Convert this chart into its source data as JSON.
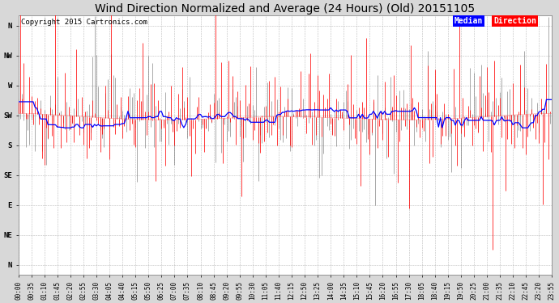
{
  "title": "Wind Direction Normalized and Average (24 Hours) (Old) 20151105",
  "copyright": "Copyright 2015 Cartronics.com",
  "y_labels": [
    "N",
    "NW",
    "W",
    "SW",
    "S",
    "SE",
    "E",
    "NE",
    "N"
  ],
  "y_values": [
    360,
    315,
    270,
    225,
    180,
    135,
    90,
    45,
    0
  ],
  "ylim_min": 0,
  "ylim_max": 360,
  "background_color": "#d8d8d8",
  "plot_bg_color": "#ffffff",
  "grid_color": "#aaaaaa",
  "red_line_color": "#ff0000",
  "gray_line_color": "#555555",
  "blue_line_color": "#0000ff",
  "median_bg_color": "#0000ff",
  "direction_bg_color": "#ff0000",
  "text_white": "#ffffff",
  "title_fontsize": 10,
  "tick_fontsize": 5.5,
  "copyright_fontsize": 6.5,
  "legend_fontsize": 7,
  "seed": 42,
  "n_points": 288,
  "base_direction": 225,
  "median_window": 25,
  "tick_every": 7,
  "minutes_per_point": 5
}
